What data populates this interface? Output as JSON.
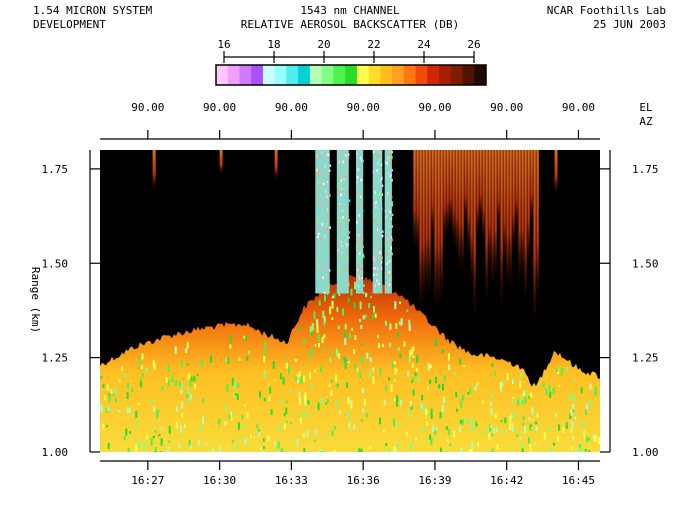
{
  "header": {
    "left_line1": "1.54 MICRON SYSTEM",
    "left_line2": "DEVELOPMENT",
    "center_line1": "1543 nm CHANNEL",
    "center_line2": "RELATIVE AEROSOL BACKSCATTER (DB)",
    "right_line1": "NCAR Foothills Lab",
    "right_line2": "25 JUN 2003"
  },
  "colorbar": {
    "ticks": [
      "16",
      "18",
      "20",
      "22",
      "24",
      "26"
    ],
    "range": [
      16,
      26
    ],
    "colors": [
      "#ffc8ff",
      "#f0a0ff",
      "#d278ff",
      "#aa50ff",
      "#c8ffff",
      "#96ffff",
      "#50ebeb",
      "#00d2d2",
      "#b4ffb4",
      "#82ff82",
      "#50f050",
      "#28dc28",
      "#ffff50",
      "#ffdc28",
      "#ffbe1e",
      "#ffa01e",
      "#ff7814",
      "#f04b0a",
      "#d22800",
      "#a51e00",
      "#7d1e00",
      "#501400",
      "#230a00"
    ]
  },
  "top_axis": {
    "labels": [
      "90.00",
      "90.00",
      "90.00",
      "90.00",
      "90.00",
      "90.00",
      "90.00"
    ],
    "el_label": "EL",
    "az_label": "AZ"
  },
  "chart_data": {
    "type": "heatmap",
    "title": "RELATIVE AEROSOL BACKSCATTER (DB)",
    "ylabel": "Range (km)",
    "xlabel": "",
    "y_ticks": [
      "1.75",
      "1.50",
      "1.25",
      "1.00"
    ],
    "y_tick_values": [
      1.75,
      1.5,
      1.25,
      1.0
    ],
    "ylim": [
      1.0,
      1.8
    ],
    "x_ticks": [
      "16:27",
      "16:30",
      "16:33",
      "16:36",
      "16:39",
      "16:42",
      "16:45"
    ],
    "x_tick_minutes": [
      987,
      990,
      993,
      996,
      999,
      1002,
      1005
    ],
    "xlim_minutes": [
      985.0,
      1005.9
    ],
    "elevation_deg": 90.0,
    "value_range_db": [
      16,
      26
    ],
    "aerosol_top_km": [
      [
        985.0,
        1.23
      ],
      [
        986.5,
        1.28
      ],
      [
        988.0,
        1.31
      ],
      [
        989.5,
        1.33
      ],
      [
        991.0,
        1.34
      ],
      [
        992.0,
        1.31
      ],
      [
        992.8,
        1.29
      ],
      [
        993.5,
        1.38
      ],
      [
        994.5,
        1.44
      ],
      [
        995.5,
        1.47
      ],
      [
        996.5,
        1.45
      ],
      [
        997.5,
        1.42
      ],
      [
        998.5,
        1.36
      ],
      [
        999.5,
        1.3
      ],
      [
        1000.5,
        1.26
      ],
      [
        1001.5,
        1.25
      ],
      [
        1002.5,
        1.23
      ],
      [
        1003.2,
        1.17
      ],
      [
        1004.0,
        1.27
      ],
      [
        1005.0,
        1.22
      ],
      [
        1005.9,
        1.2
      ]
    ],
    "aerosol_plume_bands_minutes": [
      [
        994.0,
        994.6
      ],
      [
        994.9,
        995.4
      ],
      [
        995.7,
        996.0
      ],
      [
        996.4,
        996.8
      ],
      [
        996.9,
        997.2
      ]
    ],
    "cloud_streak_region_minutes": [
      998.1,
      1003.3
    ]
  }
}
